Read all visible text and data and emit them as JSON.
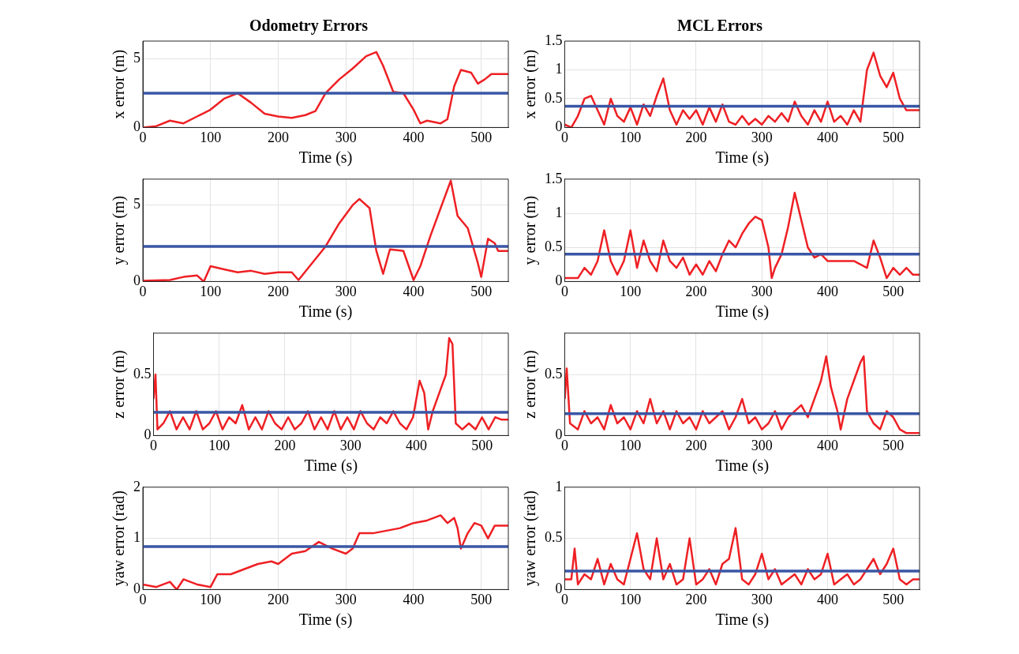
{
  "chart_data": [
    {
      "type": "line",
      "title": "Odometry Errors",
      "xlabel": "Time (s)",
      "ylabel": "x error (m)",
      "xlim": [
        0,
        540
      ],
      "xticks": [
        0,
        100,
        200,
        300,
        400,
        500
      ],
      "ylim": [
        0,
        6.3
      ],
      "yticks": [
        0,
        5
      ],
      "grid": true,
      "x": [
        0,
        20,
        40,
        60,
        80,
        100,
        120,
        140,
        160,
        180,
        200,
        220,
        240,
        255,
        270,
        290,
        310,
        330,
        345,
        355,
        370,
        385,
        400,
        410,
        420,
        440,
        450,
        460,
        470,
        485,
        495,
        505,
        515,
        540
      ],
      "series": [
        {
          "color": "#ee2024",
          "values": [
            0,
            0.1,
            0.5,
            0.3,
            0.8,
            1.3,
            2.1,
            2.5,
            1.8,
            1.0,
            0.8,
            0.7,
            0.9,
            1.2,
            2.5,
            3.5,
            4.3,
            5.2,
            5.5,
            4.5,
            2.6,
            2.5,
            1.3,
            0.3,
            0.5,
            0.3,
            0.6,
            3.0,
            4.2,
            4.0,
            3.2,
            3.5,
            3.9,
            3.9
          ]
        }
      ],
      "ref_lines": [
        {
          "axis": "y",
          "value": 2.5,
          "color": "#3a56a5"
        }
      ]
    },
    {
      "type": "line",
      "title": "MCL Errors",
      "xlabel": "Time (s)",
      "ylabel": "x error (m)",
      "xlim": [
        0,
        540
      ],
      "xticks": [
        0,
        100,
        200,
        300,
        400,
        500
      ],
      "ylim": [
        0,
        1.5
      ],
      "yticks": [
        0,
        0.5,
        1,
        1.5
      ],
      "grid": true,
      "x": [
        0,
        10,
        20,
        30,
        40,
        50,
        60,
        70,
        80,
        90,
        100,
        110,
        120,
        130,
        140,
        150,
        160,
        170,
        180,
        190,
        200,
        210,
        220,
        230,
        240,
        250,
        260,
        270,
        280,
        290,
        300,
        310,
        320,
        330,
        340,
        350,
        360,
        370,
        380,
        390,
        400,
        410,
        420,
        430,
        440,
        450,
        460,
        470,
        480,
        490,
        500,
        510,
        520,
        540
      ],
      "series": [
        {
          "color": "#ee2024",
          "values": [
            0.05,
            0,
            0.2,
            0.5,
            0.55,
            0.3,
            0.05,
            0.5,
            0.2,
            0.1,
            0.35,
            0.05,
            0.4,
            0.2,
            0.55,
            0.85,
            0.3,
            0.05,
            0.3,
            0.15,
            0.3,
            0.05,
            0.35,
            0.1,
            0.4,
            0.1,
            0.05,
            0.2,
            0.05,
            0.15,
            0.05,
            0.2,
            0.1,
            0.25,
            0.1,
            0.45,
            0.2,
            0.05,
            0.3,
            0.1,
            0.45,
            0.1,
            0.2,
            0.05,
            0.3,
            0.1,
            1.0,
            1.3,
            0.9,
            0.7,
            0.95,
            0.5,
            0.3,
            0.3
          ]
        }
      ],
      "ref_lines": [
        {
          "axis": "y",
          "value": 0.37,
          "color": "#3a56a5"
        }
      ]
    },
    {
      "type": "line",
      "xlabel": "Time (s)",
      "ylabel": "y error (m)",
      "xlim": [
        0,
        540
      ],
      "xticks": [
        0,
        100,
        200,
        300,
        400,
        500
      ],
      "ylim": [
        0,
        6.7
      ],
      "yticks": [
        0,
        5
      ],
      "grid": true,
      "x": [
        0,
        40,
        60,
        80,
        90,
        100,
        120,
        140,
        160,
        180,
        200,
        220,
        230,
        250,
        270,
        290,
        310,
        320,
        335,
        345,
        355,
        365,
        385,
        400,
        410,
        425,
        440,
        455,
        465,
        480,
        495,
        500,
        510,
        520,
        525,
        540
      ],
      "series": [
        {
          "color": "#ee2024",
          "values": [
            0.05,
            0.1,
            0.3,
            0.4,
            0,
            1.0,
            0.8,
            0.6,
            0.7,
            0.5,
            0.6,
            0.6,
            0.1,
            1.2,
            2.3,
            3.8,
            5.0,
            5.4,
            4.8,
            2.0,
            0.5,
            2.1,
            2.0,
            0.1,
            1.0,
            3.0,
            4.8,
            6.6,
            4.3,
            3.5,
            1.2,
            0.3,
            2.8,
            2.5,
            2.0,
            2.0
          ]
        }
      ],
      "ref_lines": [
        {
          "axis": "y",
          "value": 2.3,
          "color": "#3a56a5"
        }
      ]
    },
    {
      "type": "line",
      "xlabel": "Time (s)",
      "ylabel": "y error (m)",
      "xlim": [
        0,
        540
      ],
      "xticks": [
        0,
        100,
        200,
        300,
        400,
        500
      ],
      "ylim": [
        0,
        1.5
      ],
      "yticks": [
        0,
        0.5,
        1,
        1.5
      ],
      "grid": true,
      "x": [
        0,
        20,
        30,
        40,
        50,
        60,
        70,
        80,
        90,
        100,
        110,
        120,
        130,
        140,
        150,
        160,
        170,
        180,
        190,
        200,
        210,
        220,
        230,
        240,
        250,
        260,
        270,
        280,
        290,
        300,
        310,
        315,
        320,
        330,
        340,
        350,
        360,
        370,
        380,
        390,
        400,
        420,
        440,
        460,
        470,
        480,
        490,
        500,
        510,
        520,
        530,
        540
      ],
      "series": [
        {
          "color": "#ee2024",
          "values": [
            0.05,
            0.05,
            0.2,
            0.1,
            0.3,
            0.75,
            0.3,
            0.1,
            0.3,
            0.75,
            0.2,
            0.6,
            0.3,
            0.15,
            0.6,
            0.3,
            0.2,
            0.35,
            0.1,
            0.25,
            0.1,
            0.3,
            0.15,
            0.4,
            0.6,
            0.5,
            0.7,
            0.85,
            0.95,
            0.9,
            0.5,
            0.05,
            0.2,
            0.4,
            0.8,
            1.3,
            0.9,
            0.5,
            0.35,
            0.4,
            0.3,
            0.3,
            0.3,
            0.2,
            0.6,
            0.35,
            0.05,
            0.2,
            0.1,
            0.2,
            0.1,
            0.1
          ]
        }
      ],
      "ref_lines": [
        {
          "axis": "y",
          "value": 0.4,
          "color": "#3a56a5"
        }
      ]
    },
    {
      "type": "line",
      "xlabel": "Time (s)",
      "ylabel": "z error (m)",
      "xlim": [
        0,
        540
      ],
      "xticks": [
        0,
        100,
        200,
        300,
        400,
        500
      ],
      "ylim": [
        0,
        0.84
      ],
      "yticks": [
        0,
        0.5
      ],
      "grid": true,
      "x": [
        0,
        3,
        6,
        15,
        25,
        35,
        45,
        55,
        65,
        75,
        85,
        95,
        105,
        115,
        125,
        135,
        145,
        155,
        165,
        175,
        185,
        195,
        205,
        215,
        225,
        235,
        245,
        255,
        265,
        275,
        285,
        295,
        305,
        315,
        325,
        335,
        345,
        355,
        365,
        375,
        385,
        395,
        400,
        405,
        412,
        418,
        425,
        435,
        445,
        450,
        455,
        460,
        470,
        480,
        490,
        500,
        510,
        520,
        530,
        540
      ],
      "series": [
        {
          "color": "#ee2024",
          "values": [
            0.3,
            0.5,
            0.05,
            0.1,
            0.2,
            0.05,
            0.15,
            0.05,
            0.2,
            0.05,
            0.1,
            0.2,
            0.05,
            0.15,
            0.1,
            0.25,
            0.05,
            0.15,
            0.05,
            0.2,
            0.1,
            0.05,
            0.15,
            0.05,
            0.1,
            0.2,
            0.05,
            0.15,
            0.05,
            0.2,
            0.05,
            0.15,
            0.05,
            0.2,
            0.1,
            0.05,
            0.15,
            0.1,
            0.2,
            0.1,
            0.05,
            0.15,
            0.3,
            0.45,
            0.35,
            0.05,
            0.2,
            0.35,
            0.5,
            0.8,
            0.75,
            0.1,
            0.05,
            0.1,
            0.05,
            0.15,
            0.05,
            0.15,
            0.13,
            0.13
          ]
        }
      ],
      "ref_lines": [
        {
          "axis": "y",
          "value": 0.19,
          "color": "#3a56a5"
        }
      ]
    },
    {
      "type": "line",
      "xlabel": "Time (s)",
      "ylabel": "z error (m)",
      "xlim": [
        0,
        540
      ],
      "xticks": [
        0,
        100,
        200,
        300,
        400,
        500
      ],
      "ylim": [
        0,
        0.84
      ],
      "yticks": [
        0,
        0.5
      ],
      "grid": true,
      "x": [
        0,
        3,
        8,
        20,
        30,
        40,
        50,
        60,
        70,
        80,
        90,
        100,
        110,
        120,
        130,
        140,
        150,
        160,
        170,
        180,
        190,
        200,
        210,
        220,
        230,
        240,
        250,
        260,
        270,
        280,
        290,
        300,
        310,
        320,
        330,
        340,
        350,
        360,
        370,
        380,
        390,
        398,
        405,
        415,
        420,
        430,
        440,
        450,
        455,
        460,
        470,
        480,
        490,
        500,
        510,
        520,
        540
      ],
      "series": [
        {
          "color": "#ee2024",
          "values": [
            0.3,
            0.55,
            0.1,
            0.05,
            0.2,
            0.1,
            0.15,
            0.05,
            0.25,
            0.1,
            0.15,
            0.05,
            0.2,
            0.1,
            0.3,
            0.1,
            0.2,
            0.05,
            0.2,
            0.1,
            0.15,
            0.05,
            0.2,
            0.1,
            0.15,
            0.2,
            0.05,
            0.15,
            0.3,
            0.1,
            0.15,
            0.05,
            0.1,
            0.2,
            0.05,
            0.15,
            0.2,
            0.25,
            0.15,
            0.3,
            0.45,
            0.65,
            0.4,
            0.2,
            0.05,
            0.3,
            0.45,
            0.6,
            0.65,
            0.2,
            0.1,
            0.05,
            0.2,
            0.15,
            0.05,
            0.02,
            0.02
          ]
        }
      ],
      "ref_lines": [
        {
          "axis": "y",
          "value": 0.18,
          "color": "#3a56a5"
        }
      ]
    },
    {
      "type": "line",
      "xlabel": "Time (s)",
      "ylabel": "yaw error (rad)",
      "xlim": [
        0,
        540
      ],
      "xticks": [
        0,
        100,
        200,
        300,
        400,
        500
      ],
      "ylim": [
        0,
        2
      ],
      "yticks": [
        0,
        1,
        2
      ],
      "grid": true,
      "x": [
        0,
        20,
        40,
        50,
        60,
        80,
        100,
        110,
        130,
        150,
        170,
        190,
        200,
        220,
        240,
        260,
        280,
        300,
        310,
        320,
        340,
        360,
        380,
        400,
        420,
        440,
        450,
        460,
        465,
        470,
        480,
        490,
        500,
        510,
        520,
        540
      ],
      "series": [
        {
          "color": "#ee2024",
          "values": [
            0.1,
            0.05,
            0.15,
            0,
            0.2,
            0.1,
            0.05,
            0.3,
            0.3,
            0.4,
            0.5,
            0.55,
            0.5,
            0.7,
            0.75,
            0.93,
            0.8,
            0.7,
            0.8,
            1.1,
            1.1,
            1.15,
            1.2,
            1.3,
            1.35,
            1.45,
            1.3,
            1.4,
            1.2,
            0.8,
            1.1,
            1.3,
            1.25,
            1.0,
            1.25,
            1.25
          ]
        }
      ],
      "ref_lines": [
        {
          "axis": "y",
          "value": 0.84,
          "color": "#3a56a5"
        }
      ]
    },
    {
      "type": "line",
      "xlabel": "Time (s)",
      "ylabel": "yaw error (rad)",
      "xlim": [
        0,
        540
      ],
      "xticks": [
        0,
        100,
        200,
        300,
        400,
        500
      ],
      "ylim": [
        0,
        1
      ],
      "yticks": [
        0,
        0.5,
        1
      ],
      "grid": true,
      "x": [
        0,
        10,
        15,
        20,
        30,
        40,
        50,
        60,
        70,
        80,
        90,
        100,
        110,
        120,
        130,
        140,
        150,
        160,
        170,
        180,
        190,
        200,
        210,
        220,
        230,
        240,
        250,
        260,
        270,
        280,
        290,
        300,
        310,
        320,
        330,
        340,
        350,
        360,
        370,
        380,
        390,
        400,
        410,
        420,
        430,
        440,
        450,
        460,
        470,
        480,
        490,
        500,
        510,
        520,
        530,
        540
      ],
      "series": [
        {
          "color": "#ee2024",
          "values": [
            0.1,
            0.1,
            0.4,
            0.05,
            0.15,
            0.1,
            0.3,
            0.05,
            0.25,
            0.1,
            0.05,
            0.3,
            0.55,
            0.2,
            0.1,
            0.5,
            0.1,
            0.25,
            0.05,
            0.1,
            0.5,
            0.05,
            0.1,
            0.2,
            0.05,
            0.25,
            0.3,
            0.6,
            0.1,
            0.05,
            0.15,
            0.35,
            0.1,
            0.2,
            0.05,
            0.1,
            0.15,
            0.05,
            0.2,
            0.1,
            0.15,
            0.35,
            0.05,
            0.1,
            0.15,
            0.05,
            0.1,
            0.2,
            0.3,
            0.15,
            0.25,
            0.4,
            0.1,
            0.05,
            0.1,
            0.1
          ]
        }
      ],
      "ref_lines": [
        {
          "axis": "y",
          "value": 0.18,
          "color": "#3a56a5"
        }
      ]
    }
  ]
}
